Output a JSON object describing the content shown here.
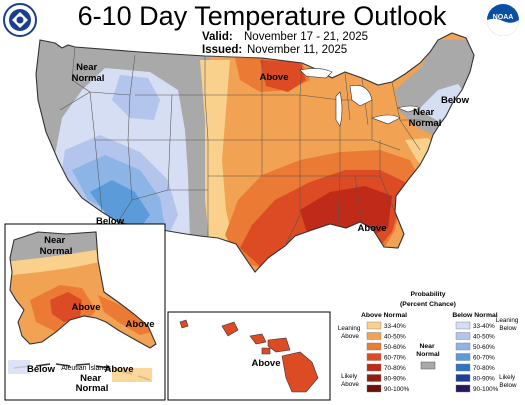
{
  "header": {
    "title": "6-10 Day Temperature Outlook",
    "valid_label": "Valid:",
    "valid_value": "November 17 - 21, 2025",
    "issued_label": "Issued:",
    "issued_value": "November 11, 2025"
  },
  "logos": {
    "left_alt": "DOC",
    "right_text": "NOAA"
  },
  "map_labels": {
    "conus_nw": "Near\nNormal",
    "conus_n": "Above",
    "conus_ne": "Below",
    "conus_ne_near": "Near\nNormal",
    "conus_sw": "Below",
    "conus_se": "Above",
    "ak_near": "Near\nNormal",
    "ak_above": "Above",
    "ak_above_se": "Above",
    "ak_below": "Below",
    "ak_aleutian_title": "Aleutian Islands",
    "ak_aleutian_near": "Near\nNormal",
    "ak_aleutian_above": "Above",
    "hi_above": "Above"
  },
  "legend": {
    "title_line1": "Probability",
    "title_line2": "(Percent Chance)",
    "above_header": "Above Normal",
    "below_header": "Below Normal",
    "near_label": "Near\nNormal",
    "leaning_above": "Leaning\nAbove",
    "likely_above": "Likely\nAbove",
    "leaning_below": "Leaning\nBelow",
    "likely_below": "Likely\nBelow",
    "above": [
      {
        "range": "33-40%",
        "color": "#f9d08c"
      },
      {
        "range": "40-50%",
        "color": "#f2a253"
      },
      {
        "range": "50-60%",
        "color": "#eb7a35"
      },
      {
        "range": "60-70%",
        "color": "#dd4b24"
      },
      {
        "range": "70-80%",
        "color": "#bf2b18"
      },
      {
        "range": "80-90%",
        "color": "#941c10"
      },
      {
        "range": "90-100%",
        "color": "#6b1108"
      }
    ],
    "below": [
      {
        "range": "33-40%",
        "color": "#d6def3"
      },
      {
        "range": "40-50%",
        "color": "#b3c5ec"
      },
      {
        "range": "50-60%",
        "color": "#8db4e6"
      },
      {
        "range": "60-70%",
        "color": "#5c9bd9"
      },
      {
        "range": "70-80%",
        "color": "#2f73c4"
      },
      {
        "range": "80-90%",
        "color": "#1e3f99"
      },
      {
        "range": "90-100%",
        "color": "#2a1660"
      }
    ],
    "near_color": "#a9a9a9"
  }
}
